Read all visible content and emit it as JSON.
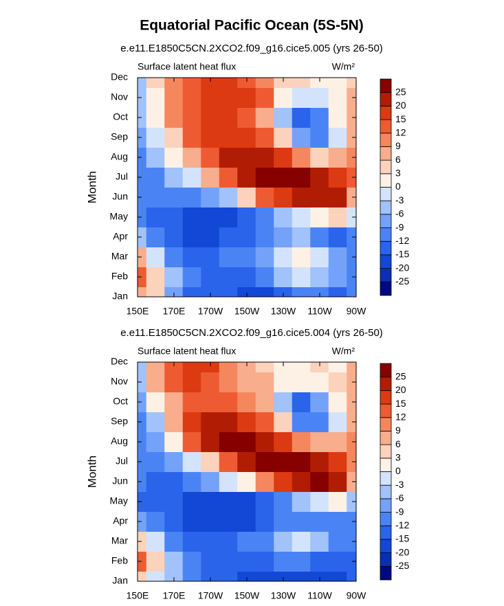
{
  "title": "Equatorial Pacific Ocean (5S-5N)",
  "chart_data": [
    {
      "type": "contour",
      "title": "e.e11.E1850C5CN.2XCO2.f09_g16.cice5.005 (yrs 26-50)",
      "left_label": "Surface latent heat flux",
      "right_label": "W/m²",
      "ylabel": "Month",
      "x": [
        150,
        160,
        170,
        180,
        190,
        200,
        210,
        220,
        230,
        240,
        250,
        260,
        270
      ],
      "y": [
        "Jan",
        "Feb",
        "Mar",
        "Apr",
        "May",
        "Jun",
        "Jul",
        "Aug",
        "Sep",
        "Oct",
        "Nov",
        "Dec"
      ],
      "xlim": [
        150,
        270
      ],
      "xticks": [
        {
          "value": 150,
          "label": "150E"
        },
        {
          "value": 170,
          "label": "170E"
        },
        {
          "value": 190,
          "label": "170W"
        },
        {
          "value": 210,
          "label": "150W"
        },
        {
          "value": 230,
          "label": "130W"
        },
        {
          "value": 250,
          "label": "110W"
        },
        {
          "value": 270,
          "label": "90W"
        }
      ],
      "levels": [
        -25,
        -20,
        -15,
        -12,
        -9,
        -6,
        -3,
        0,
        3,
        6,
        9,
        12,
        15,
        20,
        25
      ],
      "colors": [
        "#000a80",
        "#0a2fb4",
        "#1348d6",
        "#2a64ea",
        "#4a84f4",
        "#73a2f8",
        "#a1c2fa",
        "#d4e3fc",
        "#fdf1e6",
        "#fbd2bc",
        "#f8ad8d",
        "#f4875e",
        "#ee5b32",
        "#dc3a12",
        "#b11d04",
        "#860000"
      ],
      "z": [
        [
          6,
          3,
          -8,
          -13,
          -15,
          -15,
          -16,
          -16,
          -15,
          -12,
          -12,
          -14,
          -12
        ],
        [
          12,
          3,
          -6,
          -12,
          -15,
          -15,
          -15,
          -12,
          -6,
          -3,
          -5,
          -9,
          -10
        ],
        [
          6,
          -3,
          -10,
          -14,
          -14,
          -12,
          -10,
          -9,
          -3,
          2,
          -3,
          -8,
          -12
        ],
        [
          -6,
          -10,
          -14,
          -16,
          -16,
          -15,
          -14,
          -12,
          -8,
          -6,
          -10,
          -14,
          -12
        ],
        [
          -12,
          -13,
          -15,
          -16,
          -16,
          -18,
          -15,
          -10,
          -6,
          -3,
          2,
          4,
          -3
        ],
        [
          -12,
          -12,
          -12,
          -10,
          -8,
          -4,
          3,
          12,
          18,
          22,
          24,
          20,
          8
        ],
        [
          -10,
          -10,
          -6,
          -2,
          6,
          14,
          23,
          26,
          27,
          26,
          20,
          16,
          12
        ],
        [
          -10,
          -6,
          0,
          8,
          14,
          20,
          24,
          24,
          18,
          10,
          5,
          6,
          10
        ],
        [
          -8,
          -3,
          5,
          12,
          16,
          18,
          17,
          14,
          5,
          -8,
          -12,
          -2,
          8
        ],
        [
          -6,
          0,
          9,
          13,
          16,
          15,
          14,
          8,
          -6,
          -13,
          -10,
          0,
          7
        ],
        [
          -5,
          2,
          10,
          14,
          16,
          16,
          15,
          12,
          2,
          -3,
          -2,
          2,
          6
        ],
        [
          -4,
          5,
          10,
          14,
          16,
          16,
          14,
          10,
          5,
          3,
          2,
          2,
          5
        ]
      ]
    },
    {
      "type": "contour",
      "title": "e.e11.E1850C5CN.2XCO2.f09_g16.cice5.004 (yrs 26-50)",
      "left_label": "Surface latent heat flux",
      "right_label": "W/m²",
      "ylabel": "Month",
      "x": [
        150,
        160,
        170,
        180,
        190,
        200,
        210,
        220,
        230,
        240,
        250,
        260,
        270
      ],
      "y": [
        "Jan",
        "Feb",
        "Mar",
        "Apr",
        "May",
        "Jun",
        "Jul",
        "Aug",
        "Sep",
        "Oct",
        "Nov",
        "Dec"
      ],
      "xlim": [
        150,
        270
      ],
      "xticks": [
        {
          "value": 150,
          "label": "150E"
        },
        {
          "value": 170,
          "label": "170E"
        },
        {
          "value": 190,
          "label": "170W"
        },
        {
          "value": 210,
          "label": "150W"
        },
        {
          "value": 230,
          "label": "130W"
        },
        {
          "value": 250,
          "label": "110W"
        },
        {
          "value": 270,
          "label": "90W"
        }
      ],
      "levels": [
        -25,
        -20,
        -15,
        -12,
        -9,
        -6,
        -3,
        0,
        3,
        6,
        9,
        12,
        15,
        20,
        25
      ],
      "colors": [
        "#000a80",
        "#0a2fb4",
        "#1348d6",
        "#2a64ea",
        "#4a84f4",
        "#73a2f8",
        "#a1c2fa",
        "#d4e3fc",
        "#fdf1e6",
        "#fbd2bc",
        "#f8ad8d",
        "#f4875e",
        "#ee5b32",
        "#dc3a12",
        "#b11d04",
        "#860000"
      ],
      "z": [
        [
          5,
          -2,
          -6,
          -12,
          -14,
          -15,
          -16,
          -17,
          -17,
          -16,
          -16,
          -17,
          -15
        ],
        [
          14,
          4,
          -4,
          -10,
          -14,
          -15,
          -15,
          -14,
          -12,
          -10,
          -14,
          -15,
          -15
        ],
        [
          4,
          -3,
          -10,
          -14,
          -15,
          -14,
          -12,
          -10,
          -6,
          -3,
          -6,
          -10,
          -12
        ],
        [
          -8,
          -10,
          -14,
          -16,
          -18,
          -20,
          -18,
          -15,
          -12,
          -10,
          -10,
          -12,
          -12
        ],
        [
          -13,
          -14,
          -15,
          -16,
          -16,
          -19,
          -20,
          -15,
          -10,
          -6,
          -3,
          0,
          -4
        ],
        [
          -12,
          -14,
          -14,
          -12,
          -8,
          -3,
          2,
          10,
          18,
          24,
          25,
          20,
          6
        ],
        [
          -10,
          -12,
          -9,
          -3,
          5,
          14,
          24,
          27,
          27,
          26,
          22,
          16,
          10
        ],
        [
          -10,
          -8,
          2,
          12,
          20,
          25,
          26,
          24,
          18,
          10,
          6,
          8,
          10
        ],
        [
          -10,
          -4,
          8,
          16,
          20,
          20,
          18,
          14,
          4,
          -10,
          -12,
          -2,
          8
        ],
        [
          -8,
          0,
          8,
          12,
          14,
          13,
          10,
          6,
          -6,
          -13,
          -8,
          0,
          7
        ],
        [
          -6,
          6,
          14,
          17,
          14,
          10,
          8,
          6,
          2,
          0,
          2,
          3,
          6
        ],
        [
          -5,
          8,
          14,
          17,
          15,
          10,
          6,
          4,
          2,
          2,
          3,
          2,
          6
        ]
      ]
    }
  ]
}
